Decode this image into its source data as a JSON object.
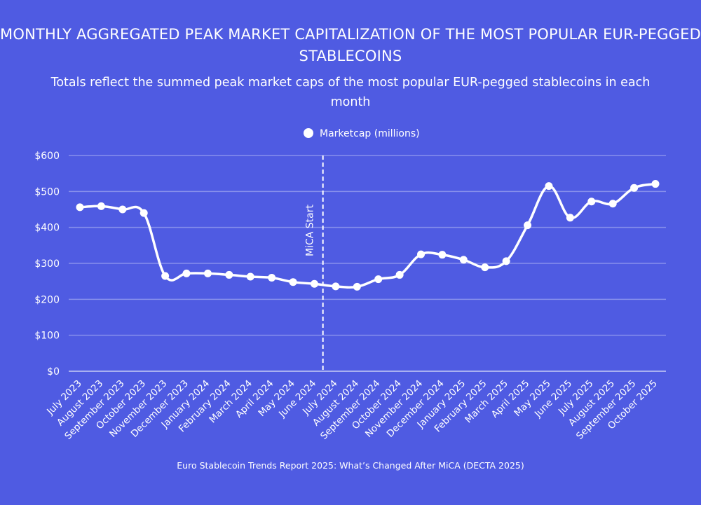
{
  "chart_data": {
    "type": "line",
    "title": "MONTHLY AGGREGATED PEAK MARKET CAPITALIZATION OF THE MOST POPULAR EUR-PEGGED STABLECOINS",
    "subtitle": "Totals reflect the summed peak market caps of the most popular EUR-pegged stablecoins in each month",
    "source": "Euro Stablecoin Trends Report 2025: What’s Changed After MiCA (DECTA 2025)",
    "categories": [
      "July 2023",
      "August 2023",
      "September 2023",
      "October 2023",
      "November 2023",
      "December 2023",
      "January 2024",
      "February 2024",
      "March 2024",
      "April 2024",
      "May 2024",
      "June 2024",
      "July 2024",
      "August 2024",
      "September 2024",
      "October 2024",
      "November 2024",
      "December 2024",
      "January 2025",
      "February 2025",
      "March 2025",
      "April 2025",
      "May 2025",
      "June 2025",
      "July 2025",
      "August 2025",
      "September 2025",
      "October 2025"
    ],
    "series": [
      {
        "name": "Marketcap (millions)",
        "color": "#ffffff",
        "values": [
          456,
          459,
          450,
          440,
          265,
          272,
          272,
          268,
          263,
          260,
          248,
          243,
          236,
          235,
          256,
          268,
          325,
          324,
          310,
          289,
          306,
          406,
          515,
          427,
          472,
          466,
          510,
          521
        ]
      }
    ],
    "ylim": [
      0,
      600
    ],
    "yticks": [
      0,
      100,
      200,
      300,
      400,
      500,
      600
    ],
    "ytick_labels": [
      "$0",
      "$100",
      "$200",
      "$300",
      "$400",
      "$500",
      "$600"
    ],
    "grid": true,
    "legend": "top-center",
    "annotation": {
      "label": "MiCA Start",
      "between": [
        "June 2024",
        "July 2024"
      ],
      "style": "dashed vertical line"
    },
    "background": "#4f5be2"
  }
}
